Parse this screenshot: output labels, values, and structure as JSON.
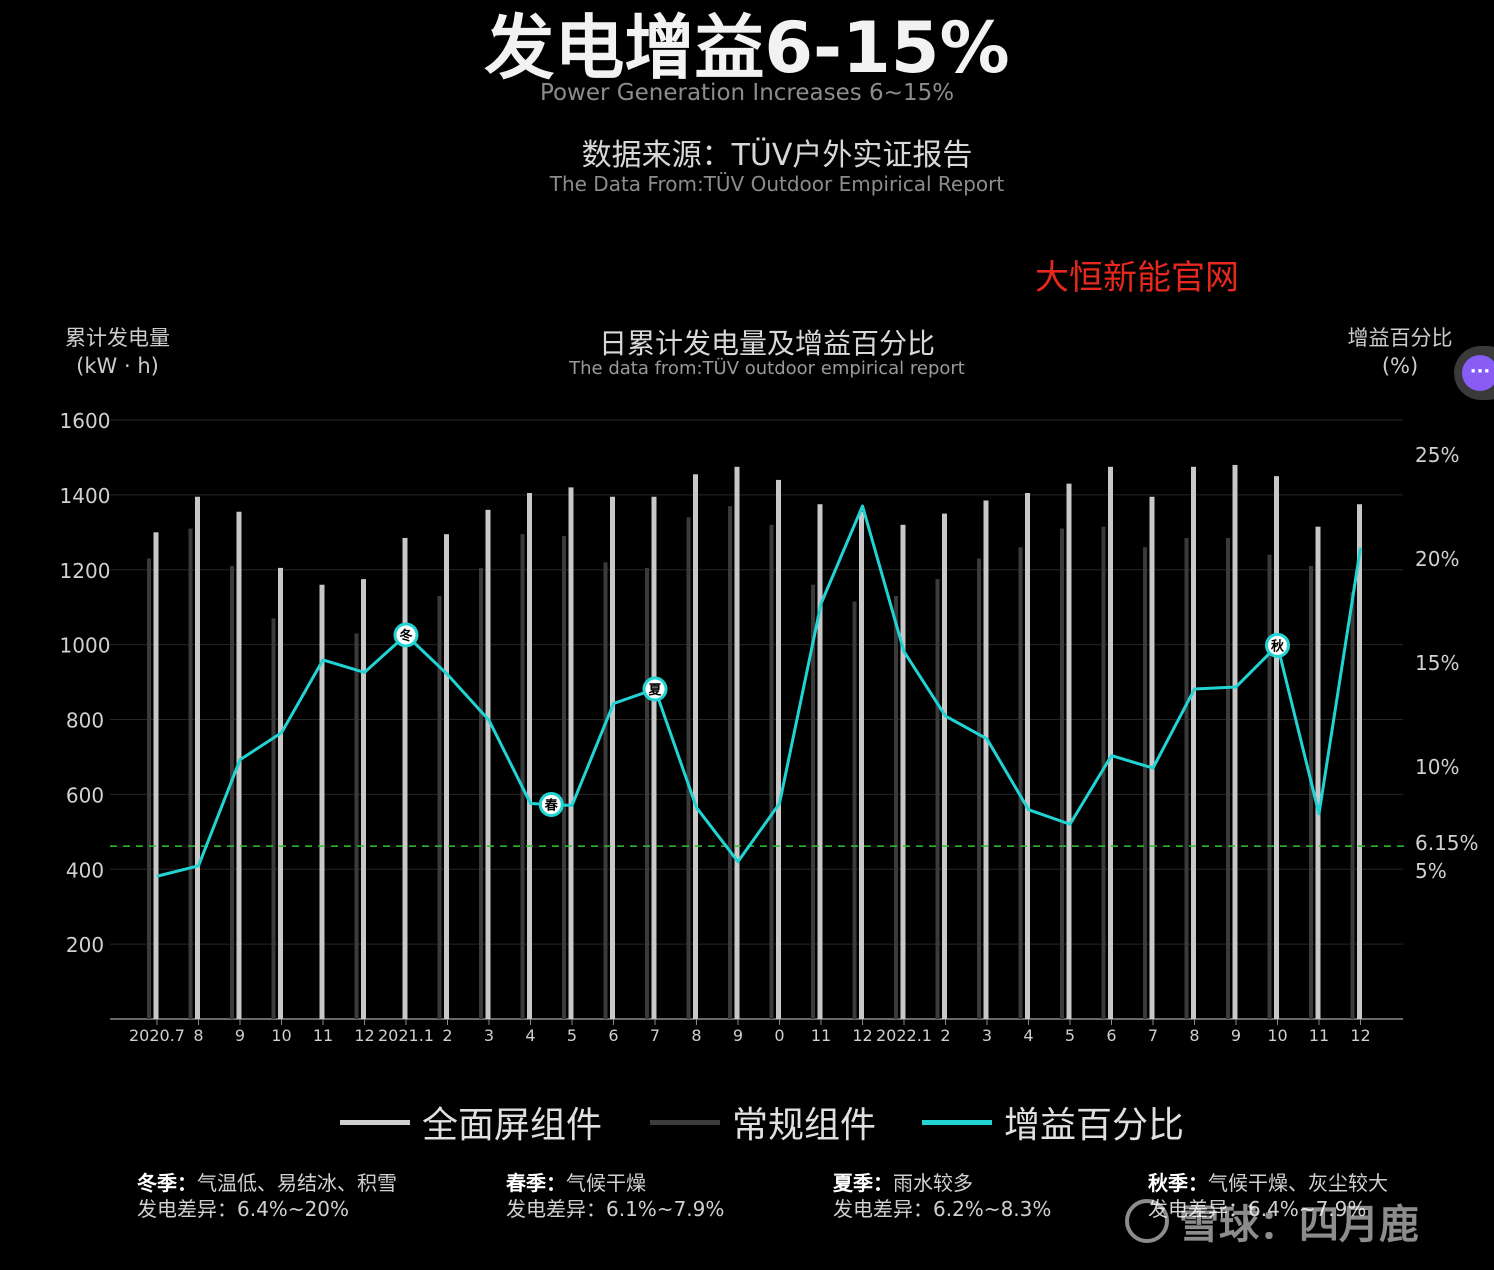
{
  "header": {
    "title": "发电增益6-15%",
    "subtitle": "Power Generation Increases 6~15%",
    "source_title": "数据来源：TÜV户外实证报告",
    "source_subtitle": "The Data From:TÜV Outdoor Empirical Report",
    "brand": "大恒新能官网"
  },
  "chart_header": {
    "title": "日累计发电量及增益百分比",
    "subtitle": "The data from:TÜV outdoor empirical report",
    "y_left_label_1": "累计发电量",
    "y_left_label_2": "(kW · h)",
    "y_right_label_1": "增益百分比",
    "y_right_label_2": "(%)"
  },
  "legend": {
    "fullscreen": "全面屏组件",
    "regular": "常规组件",
    "gain": "增益百分比"
  },
  "seasons": [
    {
      "title": "冬季：",
      "desc": "气温低、易结冰、积雪",
      "diff": "发电差异：6.4%~20%"
    },
    {
      "title": "春季：",
      "desc": "气候干燥",
      "diff": "发电差异：6.1%~7.9%"
    },
    {
      "title": "夏季：",
      "desc": "雨水较多",
      "diff": "发电差异：6.2%~8.3%"
    },
    {
      "title": "秋季：",
      "desc": "气候干燥、灰尘较大",
      "diff": "发电差异：6.4%~7.9%"
    }
  ],
  "watermark": "雪球：四月鹿",
  "chat_icon": "chat-bubble-icon",
  "colors": {
    "fullscreen_bar": "#c8c8c8",
    "regular_bar": "#3a3a3a",
    "gain_line": "#22d3d3",
    "threshold_line": "#2fc22f",
    "brand": "#e8281c"
  },
  "chart_data": {
    "type": "bar",
    "categories": [
      "2020.7",
      "8",
      "9",
      "10",
      "11",
      "12",
      "2021.1",
      "2",
      "3",
      "4",
      "5",
      "6",
      "7",
      "8",
      "9",
      "0",
      "11",
      "12",
      "2022.1",
      "2",
      "3",
      "4",
      "5",
      "6",
      "7",
      "8",
      "9",
      "10",
      "11",
      "12"
    ],
    "series": [
      {
        "name": "全面屏组件",
        "axis": "left",
        "type": "bar",
        "values": [
          1300,
          1395,
          1355,
          1205,
          1160,
          1175,
          1285,
          1295,
          1360,
          1405,
          1420,
          1395,
          1395,
          1455,
          1475,
          1440,
          1375,
          1355,
          1320,
          1350,
          1385,
          1405,
          1430,
          1475,
          1395,
          1475,
          1480,
          1450,
          1315,
          1375
        ]
      },
      {
        "name": "常规组件",
        "axis": "left",
        "type": "bar",
        "values": [
          1230,
          1310,
          1210,
          1070,
          0,
          1030,
          0,
          1130,
          1205,
          1295,
          1290,
          1220,
          1205,
          1340,
          1370,
          1320,
          1160,
          1115,
          1130,
          1175,
          1230,
          1260,
          1310,
          1315,
          1260,
          1285,
          1285,
          1240,
          1210,
          1140
        ]
      },
      {
        "name": "增益百分比",
        "axis": "right",
        "type": "line",
        "values": [
          4.7,
          5.2,
          10.3,
          11.6,
          15.1,
          14.5,
          16.3,
          14.4,
          12.2,
          8.2,
          8.1,
          13.0,
          13.7,
          8.0,
          5.4,
          8.2,
          17.8,
          22.5,
          15.5,
          12.4,
          11.3,
          7.9,
          7.2,
          10.5,
          9.9,
          13.7,
          13.8,
          15.8,
          7.7,
          20.5
        ]
      }
    ],
    "season_markers": [
      {
        "label": "冬",
        "index": 6
      },
      {
        "label": "春",
        "index": 9.5
      },
      {
        "label": "夏",
        "index": 12
      },
      {
        "label": "秋",
        "index": 27
      }
    ],
    "y_left": {
      "ticks": [
        200,
        400,
        600,
        800,
        1000,
        1200,
        1400,
        1600
      ]
    },
    "y_right": {
      "tick_labels": [
        "25%",
        "20%",
        "15%",
        "10%",
        "5%"
      ],
      "tick_values": [
        25,
        20,
        15,
        10,
        5
      ]
    },
    "threshold": {
      "label": "6.15%",
      "value": 6.15
    }
  }
}
